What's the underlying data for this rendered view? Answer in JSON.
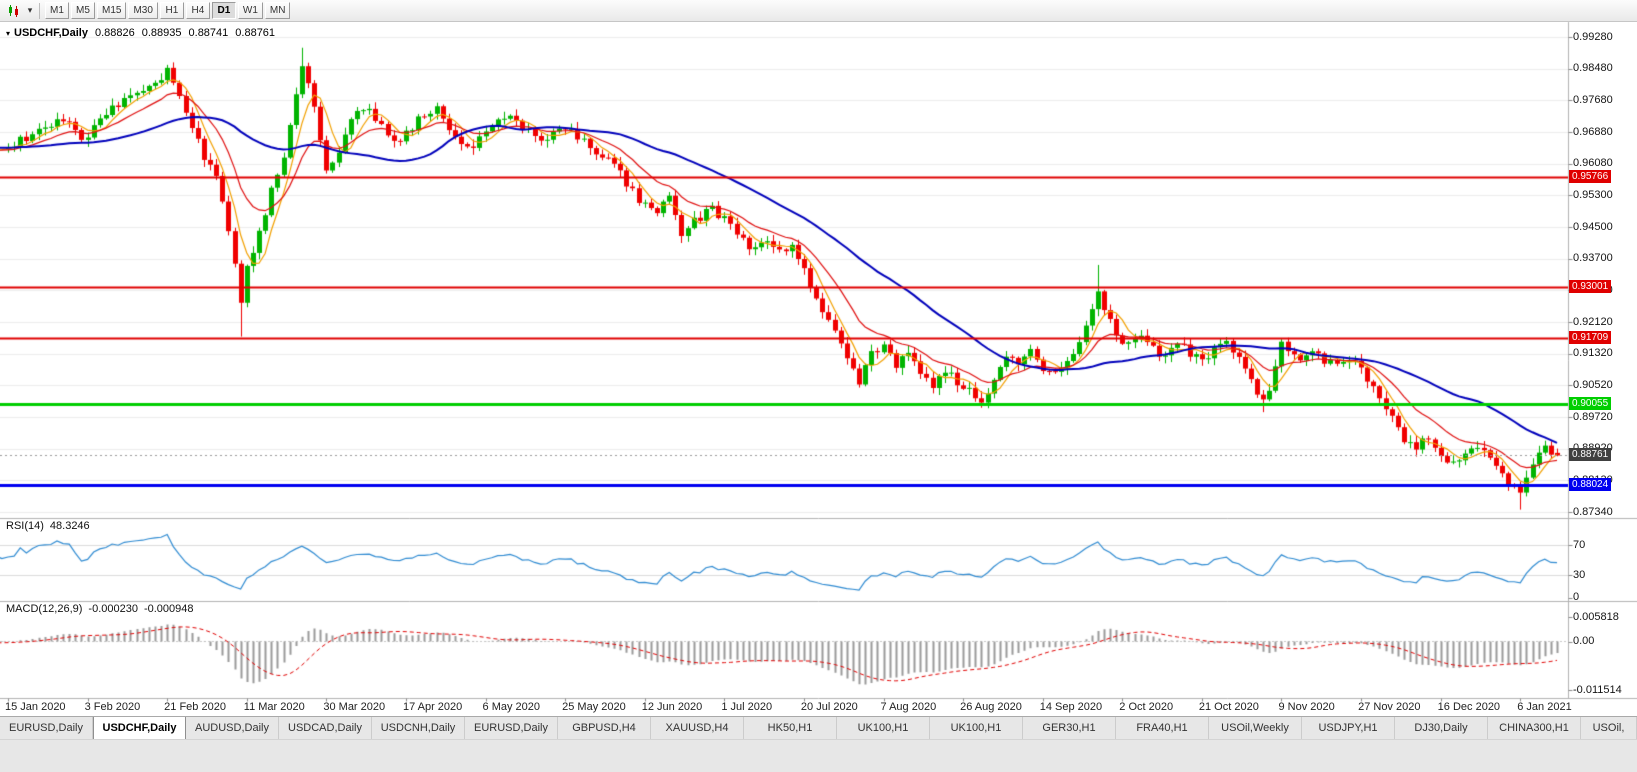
{
  "toolbar": {
    "timeframes": [
      "M1",
      "M5",
      "M15",
      "M30",
      "H1",
      "H4",
      "D1",
      "W1",
      "MN"
    ],
    "active_timeframe": "D1"
  },
  "chart": {
    "title": {
      "symbol": "USDCHF,Daily",
      "open": "0.88826",
      "high": "0.88935",
      "low": "0.88741",
      "close": "0.88761"
    },
    "rsi": {
      "label": "RSI(14)",
      "value": "48.3246",
      "ticks": [
        "70",
        "30",
        "0"
      ]
    },
    "macd": {
      "label": "MACD(12,26,9)",
      "value_main": "-0.000230",
      "value_signal": "-0.000948",
      "ticks": [
        "0.005818",
        "0.00",
        "-0.011514"
      ]
    },
    "price_axis_ticks": [
      "0.99280",
      "0.98480",
      "0.97680",
      "0.96880",
      "0.96080",
      "0.95300",
      "0.94500",
      "0.93700",
      "0.92900",
      "0.92120",
      "0.91320",
      "0.90520",
      "0.89720",
      "0.88920",
      "0.88130",
      "0.87340"
    ],
    "date_axis_labels": [
      "15 Jan 2020",
      "3 Feb 2020",
      "21 Feb 2020",
      "11 Mar 2020",
      "30 Mar 2020",
      "17 Apr 2020",
      "6 May 2020",
      "25 May 2020",
      "12 Jun 2020",
      "1 Jul 2020",
      "20 Jul 2020",
      "7 Aug 2020",
      "26 Aug 2020",
      "14 Sep 2020",
      "2 Oct 2020",
      "21 Oct 2020",
      "9 Nov 2020",
      "27 Nov 2020",
      "16 Dec 2020",
      "6 Jan 2021"
    ]
  },
  "chart_data": {
    "type": "candlestick",
    "symbol": "USDCHF",
    "timeframe": "Daily",
    "ohlc_current": {
      "open": 0.88826,
      "high": 0.88935,
      "low": 0.88741,
      "close": 0.88761
    },
    "price_range": {
      "max": 0.9928,
      "min": 0.8734
    },
    "bars_count": 254,
    "close_path_anchors": [
      [
        0,
        0.965
      ],
      [
        4,
        0.9685
      ],
      [
        9,
        0.9725
      ],
      [
        12,
        0.9665
      ],
      [
        14,
        0.97
      ],
      [
        17,
        0.9745
      ],
      [
        20,
        0.9775
      ],
      [
        23,
        0.98
      ],
      [
        26,
        0.984
      ],
      [
        28,
        0.977
      ],
      [
        30,
        0.97
      ],
      [
        32,
        0.963
      ],
      [
        34,
        0.958
      ],
      [
        36,
        0.945
      ],
      [
        38,
        0.927
      ],
      [
        39,
        0.935
      ],
      [
        41,
        0.943
      ],
      [
        43,
        0.954
      ],
      [
        45,
        0.963
      ],
      [
        47,
        0.978
      ],
      [
        48,
        0.9855
      ],
      [
        50,
        0.976
      ],
      [
        52,
        0.959
      ],
      [
        54,
        0.964
      ],
      [
        56,
        0.9725
      ],
      [
        58,
        0.9755
      ],
      [
        61,
        0.97
      ],
      [
        64,
        0.9665
      ],
      [
        67,
        0.972
      ],
      [
        70,
        0.9745
      ],
      [
        73,
        0.968
      ],
      [
        76,
        0.9645
      ],
      [
        78,
        0.9695
      ],
      [
        81,
        0.973
      ],
      [
        84,
        0.97
      ],
      [
        87,
        0.9665
      ],
      [
        90,
        0.9705
      ],
      [
        93,
        0.968
      ],
      [
        96,
        0.9635
      ],
      [
        99,
        0.9605
      ],
      [
        101,
        0.956
      ],
      [
        103,
        0.9515
      ],
      [
        106,
        0.949
      ],
      [
        108,
        0.952
      ],
      [
        110,
        0.9435
      ],
      [
        112,
        0.9465
      ],
      [
        115,
        0.9495
      ],
      [
        117,
        0.947
      ],
      [
        119,
        0.9435
      ],
      [
        121,
        0.9405
      ],
      [
        124,
        0.9415
      ],
      [
        126,
        0.9385
      ],
      [
        128,
        0.9395
      ],
      [
        130,
        0.935
      ],
      [
        132,
        0.9265
      ],
      [
        134,
        0.9215
      ],
      [
        136,
        0.9165
      ],
      [
        138,
        0.9085
      ],
      [
        139,
        0.906
      ],
      [
        141,
        0.913
      ],
      [
        143,
        0.9145
      ],
      [
        145,
        0.9105
      ],
      [
        147,
        0.913
      ],
      [
        149,
        0.9085
      ],
      [
        151,
        0.9045
      ],
      [
        153,
        0.9095
      ],
      [
        155,
        0.906
      ],
      [
        157,
        0.904
      ],
      [
        159,
        0.901
      ],
      [
        161,
        0.9075
      ],
      [
        163,
        0.913
      ],
      [
        165,
        0.9115
      ],
      [
        167,
        0.915
      ],
      [
        169,
        0.909
      ],
      [
        171,
        0.908
      ],
      [
        173,
        0.911
      ],
      [
        175,
        0.916
      ],
      [
        177,
        0.924
      ],
      [
        178,
        0.9295
      ],
      [
        179,
        0.925
      ],
      [
        181,
        0.918
      ],
      [
        183,
        0.915
      ],
      [
        185,
        0.9175
      ],
      [
        187,
        0.9145
      ],
      [
        189,
        0.912
      ],
      [
        191,
        0.9155
      ],
      [
        193,
        0.9135
      ],
      [
        195,
        0.911
      ],
      [
        197,
        0.9145
      ],
      [
        199,
        0.9165
      ],
      [
        201,
        0.912
      ],
      [
        203,
        0.906
      ],
      [
        205,
        0.901
      ],
      [
        206,
        0.9035
      ],
      [
        207,
        0.91
      ],
      [
        208,
        0.9165
      ],
      [
        209,
        0.913
      ],
      [
        211,
        0.9115
      ],
      [
        213,
        0.9135
      ],
      [
        215,
        0.911
      ],
      [
        217,
        0.9105
      ],
      [
        219,
        0.912
      ],
      [
        221,
        0.909
      ],
      [
        223,
        0.905
      ],
      [
        225,
        0.9
      ],
      [
        227,
        0.895
      ],
      [
        228,
        0.892
      ],
      [
        230,
        0.89
      ],
      [
        232,
        0.8925
      ],
      [
        234,
        0.888
      ],
      [
        236,
        0.885
      ],
      [
        238,
        0.8875
      ],
      [
        240,
        0.8895
      ],
      [
        242,
        0.8865
      ],
      [
        244,
        0.883
      ],
      [
        245,
        0.8805
      ],
      [
        246,
        0.879
      ],
      [
        247,
        0.8775
      ],
      [
        248,
        0.882
      ],
      [
        249,
        0.8855
      ],
      [
        250,
        0.8875
      ],
      [
        251,
        0.89
      ],
      [
        252,
        0.8868
      ],
      [
        253,
        0.8876
      ]
    ],
    "wick_overrides": {
      "38": {
        "low": 0.9175
      },
      "48": {
        "high": 0.9901
      },
      "159": {
        "low": 0.8996
      },
      "178": {
        "high": 0.9355
      },
      "205": {
        "low": 0.8985
      },
      "247": {
        "low": 0.874
      }
    },
    "horizontal_lines": [
      {
        "price": 0.95766,
        "label": "0.95766",
        "color": "#e00000",
        "width": 2
      },
      {
        "price": 0.93001,
        "label": "0.93001",
        "color": "#e00000",
        "width": 2
      },
      {
        "price": 0.91709,
        "label": "0.91709",
        "color": "#e00000",
        "width": 2
      },
      {
        "price": 0.90055,
        "label": "0.90055",
        "color": "#00ce00",
        "width": 3
      },
      {
        "price": 0.88024,
        "label": "0.88024",
        "color": "#0000f0",
        "width": 3
      }
    ],
    "current_price_line": {
      "price": 0.88761,
      "label": "0.88761",
      "color": "#404040"
    },
    "moving_averages": [
      {
        "type": "sma",
        "period": 5,
        "color": "#f2a000",
        "width": 1.2
      },
      {
        "type": "ema",
        "period": 13,
        "color": "#e01010",
        "width": 1.2
      },
      {
        "type": "sma",
        "period": 34,
        "color": "#0000bb",
        "width": 2
      }
    ],
    "rsi": {
      "period": 14,
      "current": 48.3246,
      "levels": [
        70,
        30
      ],
      "line_color": "#2f8bd2"
    },
    "macd": {
      "fast": 12,
      "slow": 26,
      "signal": 9,
      "current_main": -0.00023,
      "current_signal": -0.000948,
      "histogram_color": "#9b9b9b",
      "signal_color": "#e00000"
    },
    "colors": {
      "bull": "#00b400",
      "bear": "#f00000",
      "grid": "#ededed",
      "separator": "#b2b2b2",
      "current_dash": "#9a9a9a"
    }
  },
  "tabs": {
    "items": [
      "EURUSD,Daily",
      "USDCHF,Daily",
      "AUDUSD,Daily",
      "USDCAD,Daily",
      "USDCNH,Daily",
      "EURUSD,Daily",
      "GBPUSD,H4",
      "XAUUSD,H4",
      "HK50,H1",
      "UK100,H1",
      "UK100,H1",
      "GER30,H1",
      "FRA40,H1",
      "USOil,Weekly",
      "USDJPY,H1",
      "DJ30,Daily",
      "CHINA300,H1",
      "USOil,"
    ],
    "active_index": 1
  }
}
